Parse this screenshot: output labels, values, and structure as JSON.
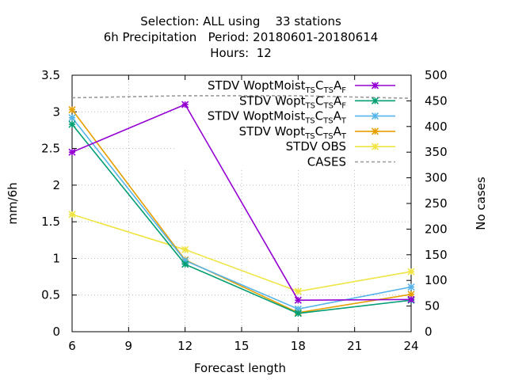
{
  "chart_data": {
    "type": "line",
    "title_lines": [
      "Selection: ALL using    33 stations",
      "6h Precipitation   Period: 20180601-20180614",
      "Hours:  12"
    ],
    "xlabel": "Forecast length",
    "ylabel": "mm/6h",
    "y2label": "No cases",
    "xlim": [
      6,
      24
    ],
    "ylim": [
      0,
      3.5
    ],
    "y2lim": [
      0,
      500
    ],
    "xticks": [
      6,
      9,
      12,
      15,
      18,
      21,
      24
    ],
    "yticks": [
      "0",
      "0.5",
      "1",
      "1.5",
      "2",
      "2.5",
      "3",
      "3.5"
    ],
    "y2ticks": [
      0,
      50,
      100,
      150,
      200,
      250,
      300,
      350,
      400,
      450,
      500
    ],
    "grid": true,
    "legend_position": "top-right",
    "series": [
      {
        "name": "STDV WoptMoist",
        "subscripts": [
          [
            "TS",
            "C"
          ],
          [
            "TS",
            "A"
          ],
          [
            "F",
            ""
          ]
        ],
        "color": "#9400d3",
        "marker": "x-star",
        "axis": "y",
        "x": [
          6,
          12,
          18,
          24
        ],
        "values": [
          2.45,
          3.1,
          0.43,
          0.44
        ]
      },
      {
        "name": "STDV Wopt",
        "subscripts": [
          [
            "TS",
            "C"
          ],
          [
            "TS",
            "A"
          ],
          [
            "F",
            ""
          ]
        ],
        "color": "#009e73",
        "marker": "x-star",
        "axis": "y",
        "x": [
          6,
          12,
          18,
          24
        ],
        "values": [
          2.83,
          0.92,
          0.25,
          0.43
        ]
      },
      {
        "name": "STDV WoptMoist",
        "subscripts": [
          [
            "TS",
            "C"
          ],
          [
            "TS",
            "A"
          ],
          [
            "T",
            ""
          ]
        ],
        "color": "#56b4e9",
        "marker": "x-star",
        "axis": "y",
        "x": [
          6,
          12,
          18,
          24
        ],
        "values": [
          2.92,
          0.97,
          0.31,
          0.61
        ]
      },
      {
        "name": "STDV Wopt",
        "subscripts": [
          [
            "TS",
            "C"
          ],
          [
            "TS",
            "A"
          ],
          [
            "T",
            ""
          ]
        ],
        "color": "#e69f00",
        "marker": "x-star",
        "axis": "y",
        "x": [
          6,
          12,
          18,
          24
        ],
        "values": [
          3.03,
          0.98,
          0.26,
          0.51
        ]
      },
      {
        "name": "STDV OBS",
        "subscripts": [],
        "color": "#f0e442",
        "marker": "x-star",
        "axis": "y",
        "x": [
          6,
          12,
          18,
          24
        ],
        "values": [
          1.6,
          1.12,
          0.55,
          0.82
        ]
      },
      {
        "name": "CASES",
        "subscripts": [],
        "color": "#999999",
        "marker": "none",
        "dashed": true,
        "axis": "y2",
        "x": [
          6,
          12,
          18,
          24
        ],
        "values": [
          456,
          460,
          460,
          455
        ]
      }
    ]
  }
}
